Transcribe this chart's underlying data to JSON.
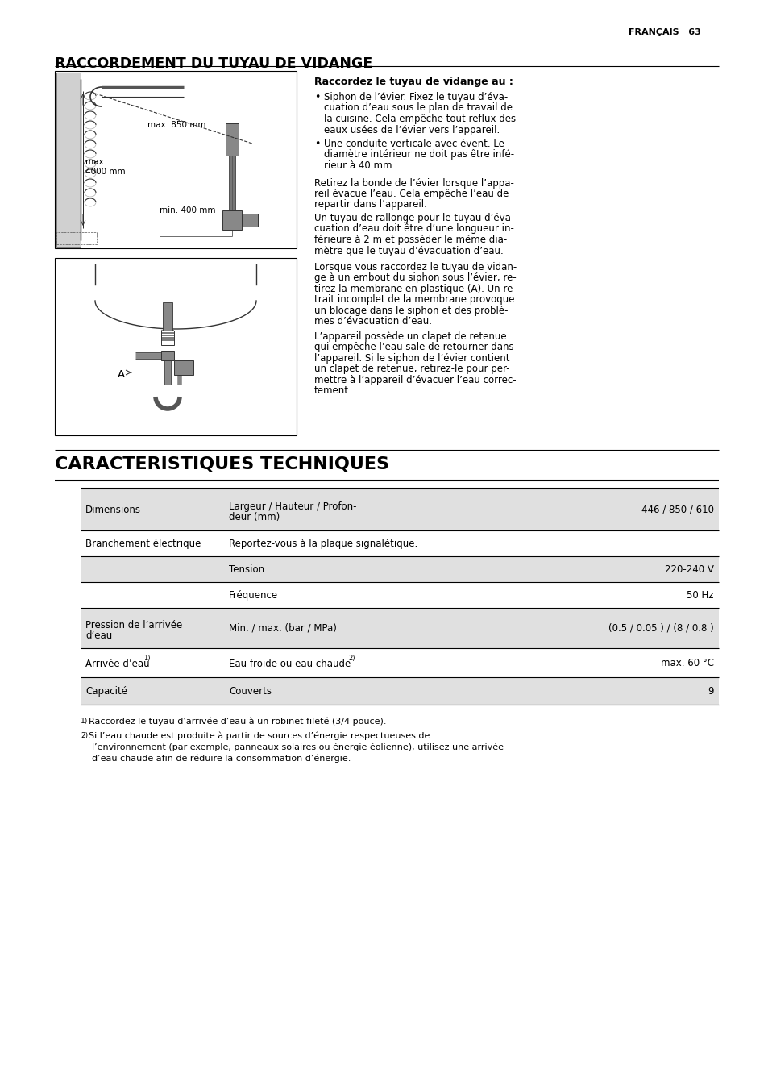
{
  "page_header": "FRANÇAIS   63",
  "section1_title": "RACCORDEMENT DU TUYAU DE VIDANGE",
  "section2_title": "CARACTERISTIQUES TECHNIQUES",
  "right_col_title": "Raccordez le tuyau de vidange au :",
  "bullet1_line1": "Siphon de l’évier. Fixez le tuyau d’éva-",
  "bullet1_line2": "cuation d’eau sous le plan de travail de",
  "bullet1_line3": "la cuisine. Cela empêche tout reflux des",
  "bullet1_line4": "eaux usées de l’évier vers l’appareil.",
  "bullet2_line1": "Une conduite verticale avec évent. Le",
  "bullet2_line2": "diamètre intérieur ne doit pas être infé-",
  "bullet2_line3": "rieur à 40 mm.",
  "para1_line1": "Retirez la bonde de l’évier lorsque l’appa-",
  "para1_line2": "reil évacue l’eau. Cela empêche l’eau de",
  "para1_line3": "repartir dans l’appareil.",
  "para2_line1": "Un tuyau de rallonge pour le tuyau d’éva-",
  "para2_line2": "cuation d’eau doit être d’une longueur in-",
  "para2_line3": "férieure à 2 m et posséder le même dia-",
  "para2_line4": "mètre que le tuyau d’évacuation d’eau.",
  "para3_line1": "Lorsque vous raccordez le tuyau de vidan-",
  "para3_line2": "ge à un embout du siphon sous l’évier, re-",
  "para3_line3": "tirez la membrane en plastique (A). Un re-",
  "para3_line4": "trait incomplet de la membrane provoque",
  "para3_line5": "un blocage dans le siphon et des problè-",
  "para3_line6": "mes d’évacuation d’eau.",
  "para4_line1": "L’appareil possède un clapet de retenue",
  "para4_line2": "qui empêche l’eau sale de retourner dans",
  "para4_line3": "l’appareil. Si le siphon de l’évier contient",
  "para4_line4": "un clapet de retenue, retirez-le pour per-",
  "para4_line5": "mettre à l’appareil d’évacuer l’eau correc-",
  "para4_line6": "tement.",
  "table_rows": [
    {
      "col1": "Dimensions",
      "col2": "Largeur / Hauteur / Profon-\ndeur (mm)",
      "col3": "446 / 850 / 610",
      "shade": true
    },
    {
      "col1": "Branchement électrique",
      "col2": "Reportez-vous à la plaque signalétique.",
      "col3": "",
      "shade": false
    },
    {
      "col1": "",
      "col2": "Tension",
      "col3": "220-240 V",
      "shade": true
    },
    {
      "col1": "",
      "col2": "Fréquence",
      "col3": "50 Hz",
      "shade": false
    },
    {
      "col1": "Pression de l’arrivée\nd’eau",
      "col2": "Min. / max. (bar / MPa)",
      "col3": "(0.5 / 0.05 ) / (8 / 0.8 )",
      "shade": true
    },
    {
      "col1": "Arrivée d’eau",
      "col2": "Eau froide ou eau chaude",
      "col3": "max. 60 °C",
      "shade": false
    },
    {
      "col1": "Capacité",
      "col2": "Couverts",
      "col3": "9",
      "shade": true
    }
  ],
  "footnote1": "Raccordez le tuyau d’arrivée d’eau à un robinet fileté (3/4 pouce).",
  "footnote2": "Si l’eau chaude est produite à partir de sources d’énergie respectueuses de\nl’environnement (par exemple, panneaux solaires ou énergie éolienne), utilisez une arrivée\nd’eau chaude afin de réduire la consommation d’énergie.",
  "bg_color": "#ffffff",
  "table_shade_color": "#e0e0e0",
  "text_color": "#000000"
}
